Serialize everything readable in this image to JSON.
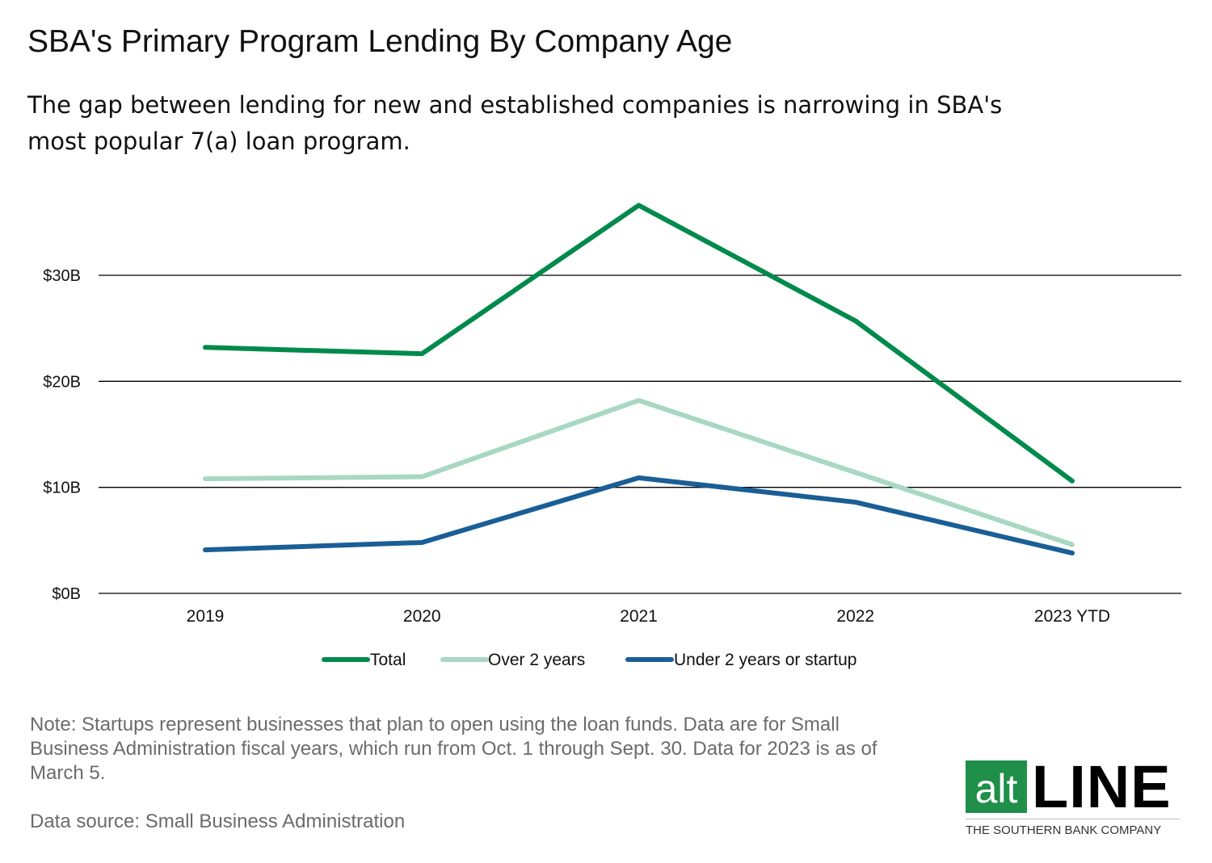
{
  "title": "SBA's Primary Program Lending By Company Age",
  "subtitle": "The gap between lending for new and established companies is narrowing in SBA's most popular 7(a) loan program.",
  "note": "Note: Startups represent businesses that plan to open using the loan funds. Data are for Small Business Administration fiscal years, which run from Oct. 1 through Sept. 30. Data for 2023 is as of March 5.",
  "source": "Data source: Small Business Administration",
  "logo": {
    "alt": "alt",
    "line": "LINE",
    "tagline": "THE SOUTHERN BANK COMPANY",
    "color": "#1f8f4a"
  },
  "chart_data": {
    "type": "line",
    "categories": [
      "2019",
      "2020",
      "2021",
      "2022",
      "2023 YTD"
    ],
    "ylim": [
      0,
      30
    ],
    "yticks": [
      0,
      10,
      20,
      30
    ],
    "ytick_labels": [
      "$0B",
      "$10B",
      "$20B",
      "$30B"
    ],
    "grid": true,
    "legend": "bottom",
    "series": [
      {
        "name": "Total",
        "color": "#008a4b",
        "values": [
          23.2,
          22.6,
          36.6,
          25.7,
          10.6
        ]
      },
      {
        "name": "Over 2 years",
        "color": "#a8d8c2",
        "values": [
          10.8,
          11.0,
          18.2,
          11.4,
          4.6
        ]
      },
      {
        "name": "Under 2 years or startup",
        "color": "#1a5e96",
        "values": [
          4.1,
          4.8,
          10.9,
          8.6,
          3.8
        ]
      }
    ]
  }
}
